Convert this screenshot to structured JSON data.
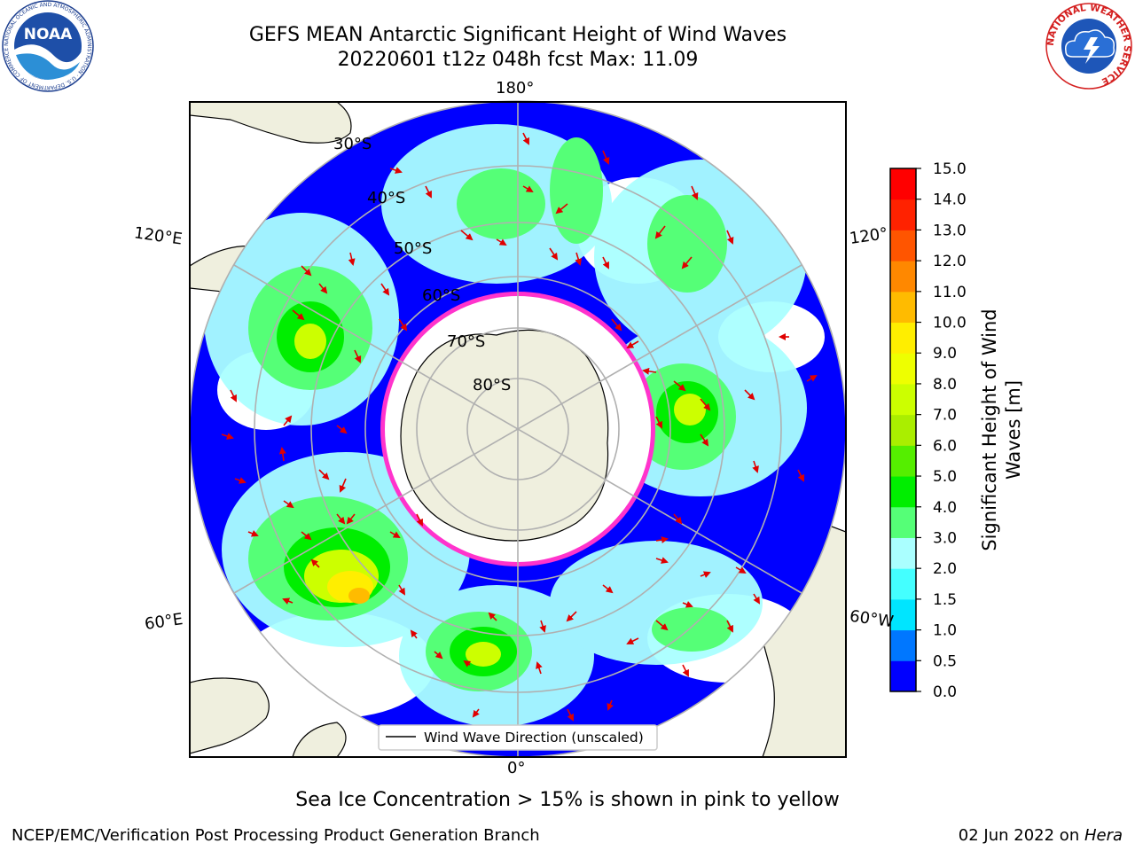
{
  "title": {
    "line1": "GEFS MEAN Antarctic Significant Height of Wind Waves",
    "line2": "20220601 t12z 048h fcst   Max: 11.09"
  },
  "map": {
    "projection": "south-polar-stereographic",
    "lat_labels": [
      "30°S",
      "40°S",
      "50°S",
      "60°S",
      "70°S",
      "80°S"
    ],
    "lon_labels": [
      "180°",
      "120°E",
      "120°",
      "60°E",
      "60°W",
      "0°"
    ],
    "legend_label": "Wind Wave Direction (unscaled)",
    "arrow_color": "#e00000",
    "land_color": "#efefde",
    "ice_edge_color": "#ff33cc"
  },
  "colorbar": {
    "label_line1": "Significant Height of Wind",
    "label_line2": "Waves [m]",
    "ticks": [
      "0.0",
      "0.5",
      "1.0",
      "1.5",
      "2.0",
      "3.0",
      "4.0",
      "5.0",
      "6.0",
      "7.0",
      "8.0",
      "9.0",
      "10.0",
      "11.0",
      "12.0",
      "13.0",
      "14.0",
      "15.0"
    ],
    "colors": [
      "#0000ff",
      "#0077ff",
      "#00e5ff",
      "#44ffff",
      "#aaffff",
      "#55ff77",
      "#00ee00",
      "#55ee00",
      "#aaee00",
      "#ccff00",
      "#eeff00",
      "#ffee00",
      "#ffbb00",
      "#ff8800",
      "#ff5500",
      "#ff2200",
      "#ff0000"
    ]
  },
  "ice_note": "Sea Ice Concentration > 15% is shown in pink to yellow",
  "footer": {
    "left": "NCEP/EMC/Verification Post Processing Product Generation Branch",
    "right_prefix": "02 Jun 2022 on ",
    "right_host": "Hera"
  },
  "logos": {
    "noaa_text": "NOAA",
    "noaa_ring_text": "NATIONAL OCEANIC AND ATMOSPHERIC ADMINISTRATION · U.S. DEPARTMENT OF COMMERCE",
    "nws_ring_text": "NATIONAL WEATHER SERVICE"
  }
}
